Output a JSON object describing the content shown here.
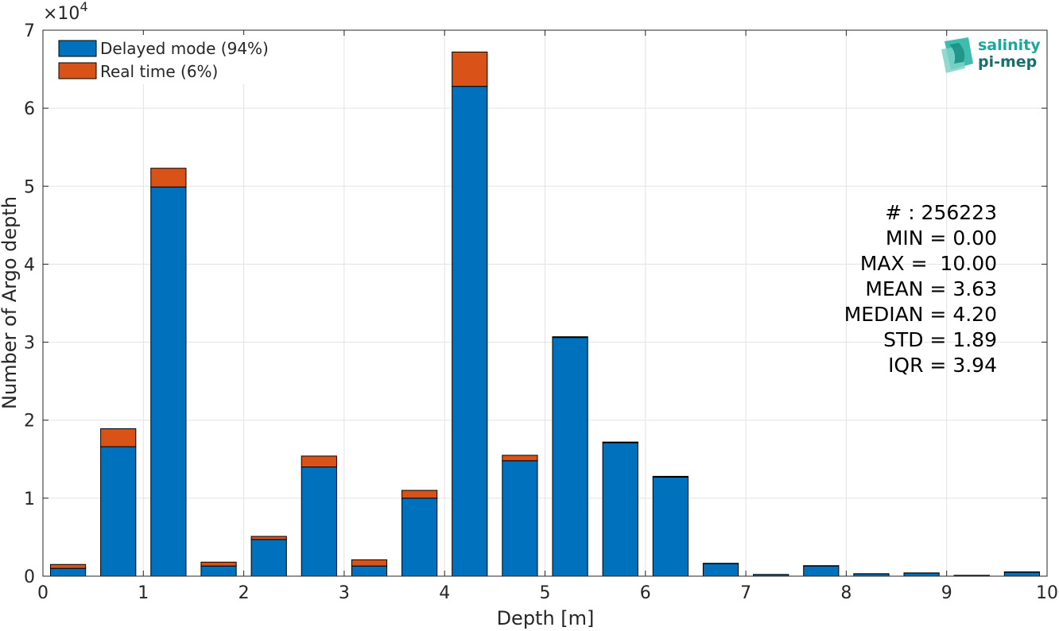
{
  "chart_data": {
    "type": "bar",
    "stacked": true,
    "x": [
      0.25,
      0.75,
      1.25,
      1.75,
      2.25,
      2.75,
      3.25,
      3.75,
      4.25,
      4.75,
      5.25,
      5.75,
      6.25,
      6.75,
      7.25,
      7.75,
      8.25,
      8.75,
      9.25,
      9.75
    ],
    "bin_width": 0.5,
    "series": [
      {
        "name": "Delayed mode (94%)",
        "color": "#0072BD",
        "values": [
          1000,
          16600,
          49900,
          1300,
          4700,
          14000,
          1300,
          10000,
          62800,
          14800,
          30600,
          17100,
          12700,
          1600,
          200,
          1300,
          300,
          400,
          100,
          500
        ]
      },
      {
        "name": "Real time (6%)",
        "color": "#D95319",
        "values": [
          500,
          2300,
          2400,
          500,
          400,
          1400,
          800,
          1000,
          4400,
          700,
          100,
          100,
          100,
          50,
          20,
          50,
          20,
          20,
          10,
          50
        ]
      }
    ],
    "xlabel": "Depth [m]",
    "ylabel": "Number of Argo depth",
    "xlim": [
      0,
      10
    ],
    "ylim": [
      0,
      70000
    ],
    "xticks": [
      "0",
      "1",
      "2",
      "3",
      "4",
      "5",
      "6",
      "7",
      "8",
      "9",
      "10"
    ],
    "yticks": [
      "0",
      "1",
      "2",
      "3",
      "4",
      "5",
      "6",
      "7"
    ],
    "y_multiplier_base": "×10",
    "y_multiplier_exp": "4",
    "grid": true,
    "legend_position": "top-left",
    "stats": [
      "# : 256223",
      "MIN = 0.00",
      "MAX =  10.00",
      "MEAN = 3.63",
      "MEDIAN = 4.20",
      "STD = 1.89",
      "IQR = 3.94"
    ]
  },
  "logo": {
    "line1": "salinity",
    "line2": "pi-mep",
    "color1": "#1aa89b",
    "color2": "#1a6e6e"
  }
}
